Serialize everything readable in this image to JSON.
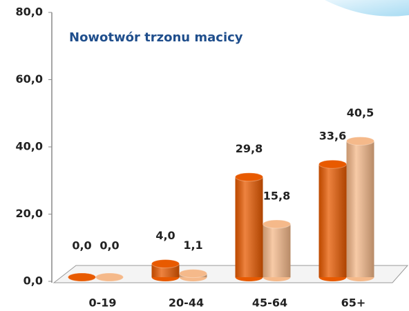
{
  "chart_data": {
    "type": "bar",
    "title": "Nowotwór trzonu macicy",
    "categories": [
      "0-19",
      "20-44",
      "45-64",
      "65+"
    ],
    "series": [
      {
        "color": "#e85a00",
        "values": [
          0,
          4,
          29.8,
          33.6
        ],
        "value_labels": [
          "0,0",
          "4,0",
          "29,8",
          "33,6"
        ]
      },
      {
        "color": "#f5b98a",
        "values": [
          0,
          1.1,
          15.8,
          40.5
        ],
        "value_labels": [
          "0,0",
          "1,1",
          "15,8",
          "40,5"
        ]
      }
    ],
    "ylim": [
      0,
      80
    ],
    "yticks": [
      {
        "value": 0,
        "label": "0,0"
      },
      {
        "value": 20,
        "label": "20,0"
      },
      {
        "value": 40,
        "label": "40,0"
      },
      {
        "value": 60,
        "label": "60,0"
      },
      {
        "value": 80,
        "label": "80,0"
      }
    ]
  }
}
